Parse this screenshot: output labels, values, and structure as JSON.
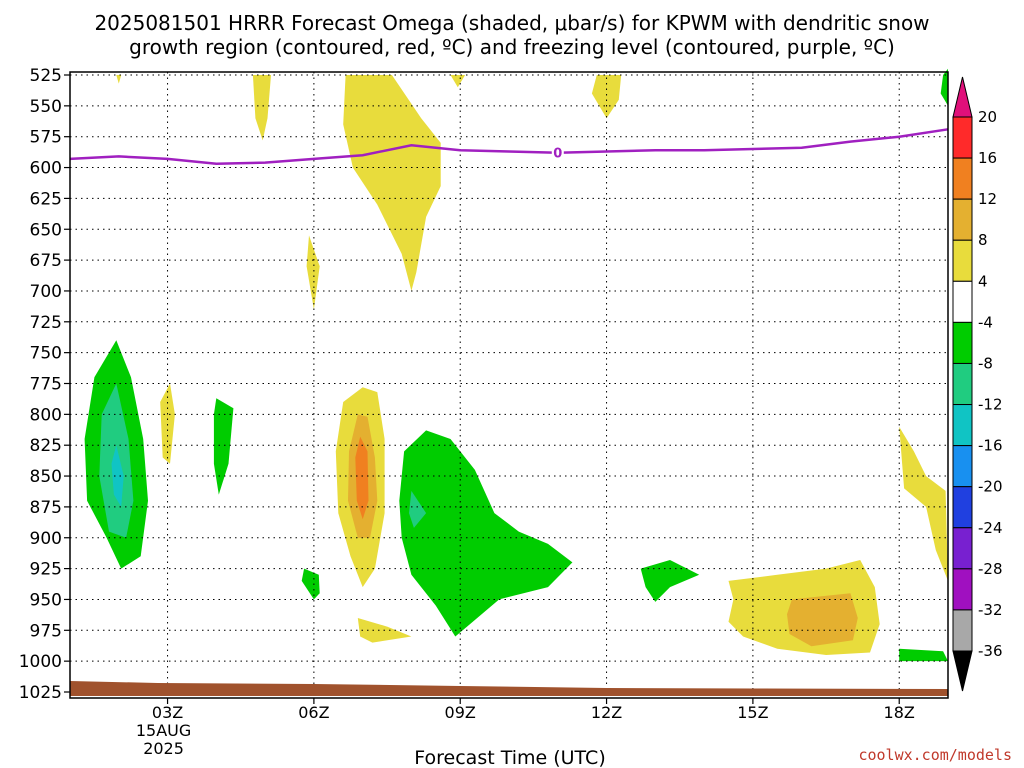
{
  "chart_data": {
    "type": "heatmap",
    "title_line1": "2025081501 HRRR Forecast Omega (shaded, μbar/s) for KPWM with dendritic snow",
    "title_line2": "growth region (contoured, red, ºC) and freezing level (contoured, purple, ºC)",
    "xlabel": "Forecast Time (UTC)",
    "credit": "coolwx.com/models",
    "x_ticks": [
      {
        "hour": 3,
        "label": "03Z",
        "sub1": "15AUG",
        "sub2": "2025"
      },
      {
        "hour": 6,
        "label": "06Z",
        "sub1": "",
        "sub2": ""
      },
      {
        "hour": 9,
        "label": "09Z",
        "sub1": "",
        "sub2": ""
      },
      {
        "hour": 12,
        "label": "12Z",
        "sub1": "",
        "sub2": ""
      },
      {
        "hour": 15,
        "label": "15Z",
        "sub1": "",
        "sub2": ""
      },
      {
        "hour": 18,
        "label": "18Z",
        "sub1": "",
        "sub2": ""
      }
    ],
    "xlim": [
      1,
      19
    ],
    "y_ticks": [
      "525",
      "550",
      "575",
      "600",
      "625",
      "650",
      "675",
      "700",
      "725",
      "750",
      "775",
      "800",
      "825",
      "850",
      "875",
      "900",
      "925",
      "950",
      "975",
      "1000",
      "1025"
    ],
    "ylim_hpa": [
      525,
      1025
    ],
    "grid": true,
    "colorbar": {
      "labels": [
        "20",
        "16",
        "12",
        "8",
        "4",
        "-4",
        "-8",
        "-12",
        "-16",
        "-20",
        "-24",
        "-28",
        "-32",
        "-36"
      ],
      "colors": [
        "#ff2a2a",
        "#f08020",
        "#e4b030",
        "#e8dc3c",
        "#ffffff",
        "#00cc00",
        "#20cc80",
        "#10c4c4",
        "#1890f0",
        "#2040e0",
        "#7820d0",
        "#a010c0",
        "#a8a8a8"
      ],
      "top_arrow_color": "#e0107a",
      "bottom_arrow_color": "#000000"
    },
    "freezing_level": {
      "label": "0",
      "color": "#a020c0",
      "points": [
        [
          1,
          593
        ],
        [
          2,
          591
        ],
        [
          3,
          593
        ],
        [
          4,
          597
        ],
        [
          5,
          596
        ],
        [
          6,
          593
        ],
        [
          7,
          590
        ],
        [
          8,
          582
        ],
        [
          9,
          586
        ],
        [
          10,
          587
        ],
        [
          11,
          588
        ],
        [
          12,
          587
        ],
        [
          13,
          586
        ],
        [
          14,
          586
        ],
        [
          15,
          585
        ],
        [
          16,
          584
        ],
        [
          17,
          579
        ],
        [
          18,
          575
        ],
        [
          19,
          569
        ]
      ]
    },
    "terrain_color": "#a0522d",
    "omega_regions": [
      {
        "color": "#e8dc3c",
        "pts": [
          [
            5.12,
            525
          ],
          [
            5.05,
            560
          ],
          [
            4.95,
            578
          ],
          [
            4.8,
            560
          ],
          [
            4.75,
            525
          ]
        ]
      },
      {
        "color": "#e8dc3c",
        "pts": [
          [
            6.75,
            525
          ],
          [
            7.6,
            525
          ],
          [
            8.2,
            560
          ],
          [
            8.6,
            580
          ],
          [
            8.6,
            615
          ],
          [
            8.3,
            640
          ],
          [
            8.1,
            685
          ],
          [
            8.0,
            700
          ],
          [
            7.8,
            670
          ],
          [
            7.3,
            630
          ],
          [
            6.8,
            600
          ],
          [
            6.6,
            565
          ],
          [
            6.65,
            525
          ]
        ]
      },
      {
        "color": "#e8dc3c",
        "pts": [
          [
            5.9,
            655
          ],
          [
            6.12,
            680
          ],
          [
            6.0,
            715
          ],
          [
            5.85,
            680
          ]
        ]
      },
      {
        "color": "#e8dc3c",
        "pts": [
          [
            8.8,
            525
          ],
          [
            9.1,
            525
          ],
          [
            8.95,
            535
          ]
        ]
      },
      {
        "color": "#e8dc3c",
        "pts": [
          [
            11.8,
            525
          ],
          [
            12.3,
            525
          ],
          [
            12.25,
            545
          ],
          [
            12.0,
            560
          ],
          [
            11.7,
            540
          ]
        ]
      },
      {
        "color": "#e8dc3c",
        "pts": [
          [
            1.95,
            525
          ],
          [
            2.05,
            525
          ],
          [
            2.0,
            532
          ]
        ]
      },
      {
        "color": "#e8dc3c",
        "pts": [
          [
            2.85,
            790
          ],
          [
            3.05,
            775
          ],
          [
            3.15,
            800
          ],
          [
            3.05,
            840
          ],
          [
            2.9,
            835
          ]
        ]
      },
      {
        "color": "#e8dc3c",
        "pts": [
          [
            7.0,
            778
          ],
          [
            7.3,
            782
          ],
          [
            7.45,
            820
          ],
          [
            7.45,
            880
          ],
          [
            7.25,
            925
          ],
          [
            7.0,
            940
          ],
          [
            6.75,
            915
          ],
          [
            6.5,
            880
          ],
          [
            6.45,
            830
          ],
          [
            6.6,
            790
          ]
        ]
      },
      {
        "color": "#e8dc3c",
        "pts": [
          [
            6.9,
            965
          ],
          [
            7.5,
            972
          ],
          [
            8.0,
            980
          ],
          [
            7.2,
            985
          ],
          [
            6.95,
            980
          ]
        ]
      },
      {
        "color": "#e8dc3c",
        "pts": [
          [
            14.5,
            935
          ],
          [
            15.5,
            930
          ],
          [
            16.5,
            925
          ],
          [
            17.2,
            918
          ],
          [
            17.5,
            940
          ],
          [
            17.6,
            970
          ],
          [
            17.4,
            993
          ],
          [
            16.5,
            995
          ],
          [
            15.5,
            990
          ],
          [
            14.8,
            980
          ],
          [
            14.5,
            968
          ],
          [
            14.6,
            950
          ]
        ]
      },
      {
        "color": "#e8dc3c",
        "pts": [
          [
            18.0,
            810
          ],
          [
            18.3,
            830
          ],
          [
            18.55,
            850
          ],
          [
            18.95,
            862
          ],
          [
            19.0,
            935
          ],
          [
            18.75,
            910
          ],
          [
            18.55,
            875
          ],
          [
            18.1,
            860
          ]
        ]
      },
      {
        "color": "#e4b030",
        "pts": [
          [
            6.9,
            800
          ],
          [
            7.1,
            802
          ],
          [
            7.25,
            835
          ],
          [
            7.3,
            870
          ],
          [
            7.15,
            900
          ],
          [
            6.9,
            900
          ],
          [
            6.7,
            870
          ],
          [
            6.72,
            830
          ]
        ]
      },
      {
        "color": "#e4b030",
        "pts": [
          [
            15.8,
            950
          ],
          [
            17.0,
            945
          ],
          [
            17.15,
            965
          ],
          [
            17.05,
            983
          ],
          [
            16.2,
            988
          ],
          [
            15.75,
            978
          ],
          [
            15.7,
            962
          ]
        ]
      },
      {
        "color": "#f08020",
        "pts": [
          [
            6.95,
            818
          ],
          [
            7.1,
            830
          ],
          [
            7.12,
            870
          ],
          [
            7.0,
            885
          ],
          [
            6.88,
            870
          ],
          [
            6.85,
            835
          ]
        ]
      },
      {
        "color": "#00cc00",
        "pts": [
          [
            1.95,
            740
          ],
          [
            2.25,
            770
          ],
          [
            2.5,
            820
          ],
          [
            2.6,
            870
          ],
          [
            2.45,
            915
          ],
          [
            2.05,
            925
          ],
          [
            1.75,
            900
          ],
          [
            1.35,
            870
          ],
          [
            1.3,
            820
          ],
          [
            1.5,
            770
          ]
        ]
      },
      {
        "color": "#00cc00",
        "pts": [
          [
            4.0,
            787
          ],
          [
            4.35,
            795
          ],
          [
            4.25,
            840
          ],
          [
            4.05,
            865
          ],
          [
            3.95,
            840
          ],
          [
            3.95,
            800
          ]
        ]
      },
      {
        "color": "#00cc00",
        "pts": [
          [
            5.8,
            925
          ],
          [
            6.1,
            930
          ],
          [
            6.12,
            945
          ],
          [
            6.0,
            950
          ],
          [
            5.75,
            935
          ]
        ]
      },
      {
        "color": "#00cc00",
        "pts": [
          [
            8.3,
            813
          ],
          [
            8.8,
            820
          ],
          [
            9.3,
            845
          ],
          [
            9.7,
            880
          ],
          [
            10.2,
            895
          ],
          [
            10.8,
            905
          ],
          [
            11.3,
            920
          ],
          [
            10.8,
            940
          ],
          [
            9.8,
            950
          ],
          [
            9.2,
            970
          ],
          [
            8.9,
            980
          ],
          [
            8.5,
            955
          ],
          [
            8.0,
            930
          ],
          [
            7.8,
            900
          ],
          [
            7.75,
            870
          ],
          [
            7.85,
            830
          ]
        ]
      },
      {
        "color": "#00cc00",
        "pts": [
          [
            12.7,
            925
          ],
          [
            13.3,
            918
          ],
          [
            13.9,
            930
          ],
          [
            13.3,
            940
          ],
          [
            13.0,
            952
          ],
          [
            12.8,
            940
          ]
        ]
      },
      {
        "color": "#00cc00",
        "pts": [
          [
            18.0,
            990
          ],
          [
            18.9,
            992
          ],
          [
            19.0,
            1000
          ],
          [
            18.0,
            1000
          ]
        ]
      },
      {
        "color": "#00cc00",
        "pts": [
          [
            18.9,
            525
          ],
          [
            19.0,
            520
          ],
          [
            19.0,
            550
          ],
          [
            18.85,
            540
          ]
        ]
      },
      {
        "color": "#20cc80",
        "pts": [
          [
            1.95,
            775
          ],
          [
            2.2,
            820
          ],
          [
            2.3,
            870
          ],
          [
            2.15,
            900
          ],
          [
            1.8,
            895
          ],
          [
            1.6,
            850
          ],
          [
            1.65,
            800
          ]
        ]
      },
      {
        "color": "#20cc80",
        "pts": [
          [
            8.0,
            862
          ],
          [
            8.3,
            880
          ],
          [
            8.05,
            892
          ],
          [
            7.95,
            880
          ]
        ]
      },
      {
        "color": "#10c4c4",
        "pts": [
          [
            1.95,
            825
          ],
          [
            2.1,
            850
          ],
          [
            2.05,
            875
          ],
          [
            1.9,
            865
          ],
          [
            1.85,
            840
          ]
        ]
      }
    ]
  }
}
